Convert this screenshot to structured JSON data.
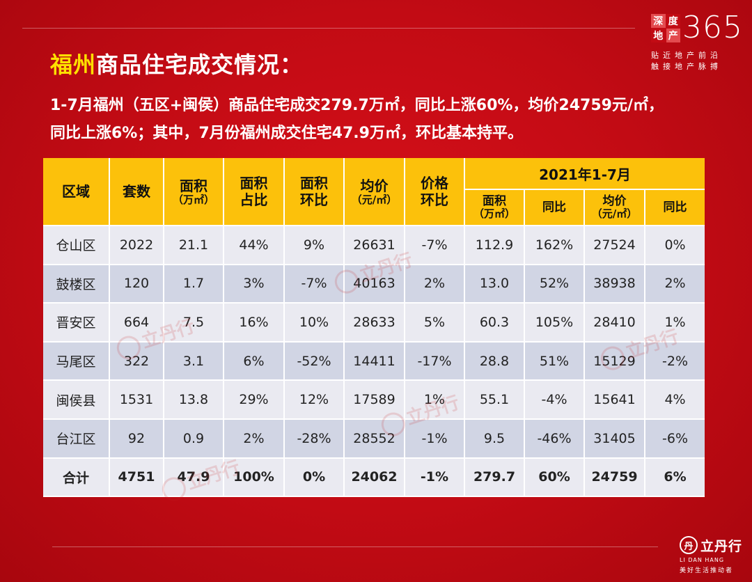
{
  "logo": {
    "chars": [
      "深",
      "度",
      "地",
      "产"
    ],
    "number": "365",
    "slogan_line1": "贴近地产前沿",
    "slogan_line2": "触接地产脉搏"
  },
  "title": {
    "highlight": "福州",
    "rest": "商品住宅成交情况："
  },
  "summary": {
    "line1": "1-7月福州（五区+闽侯）商品住宅成交279.7万㎡，同比上涨60%，均价24759元/㎡，",
    "line2": "同比上涨6%；其中，7月份福州成交住宅47.9万㎡，环比基本持平。"
  },
  "table": {
    "headers": [
      {
        "main": "区域",
        "sub": ""
      },
      {
        "main": "套数",
        "sub": ""
      },
      {
        "main": "面积",
        "sub": "（万㎡）"
      },
      {
        "main": "面积",
        "sub2": "占比"
      },
      {
        "main": "面积",
        "sub2": "环比"
      },
      {
        "main": "均价",
        "sub": "（元/㎡）"
      },
      {
        "main": "价格",
        "sub2": "环比"
      }
    ],
    "group_header": "2021年1-7月",
    "group_sub_headers": [
      {
        "main": "面积",
        "sub": "（万㎡）"
      },
      {
        "main": "同比",
        "sub": ""
      },
      {
        "main": "均价",
        "sub": "（元/㎡）"
      },
      {
        "main": "同比",
        "sub": ""
      }
    ],
    "rows": [
      [
        "仓山区",
        "2022",
        "21.1",
        "44%",
        "9%",
        "26631",
        "-7%",
        "112.9",
        "162%",
        "27524",
        "0%"
      ],
      [
        "鼓楼区",
        "120",
        "1.7",
        "3%",
        "-7%",
        "40163",
        "2%",
        "13.0",
        "52%",
        "38938",
        "2%"
      ],
      [
        "晋安区",
        "664",
        "7.5",
        "16%",
        "10%",
        "28633",
        "5%",
        "60.3",
        "105%",
        "28410",
        "1%"
      ],
      [
        "马尾区",
        "322",
        "3.1",
        "6%",
        "-52%",
        "14411",
        "-17%",
        "28.8",
        "51%",
        "15129",
        "-2%"
      ],
      [
        "闽侯县",
        "1531",
        "13.8",
        "29%",
        "12%",
        "17589",
        "1%",
        "55.1",
        "-4%",
        "15641",
        "4%"
      ],
      [
        "台江区",
        "92",
        "0.9",
        "2%",
        "-28%",
        "28552",
        "-1%",
        "9.5",
        "-46%",
        "31405",
        "-6%"
      ]
    ],
    "total": [
      "合计",
      "4751",
      "47.9",
      "100%",
      "0%",
      "24062",
      "-1%",
      "279.7",
      "60%",
      "24759",
      "6%"
    ]
  },
  "watermark": {
    "text": "立丹行",
    "en": "LI DAN HANG"
  },
  "logo_bottom": {
    "seal": "丹",
    "name": "立丹行",
    "en": "LI DAN HANG",
    "slogan": "美好生活推动者"
  }
}
